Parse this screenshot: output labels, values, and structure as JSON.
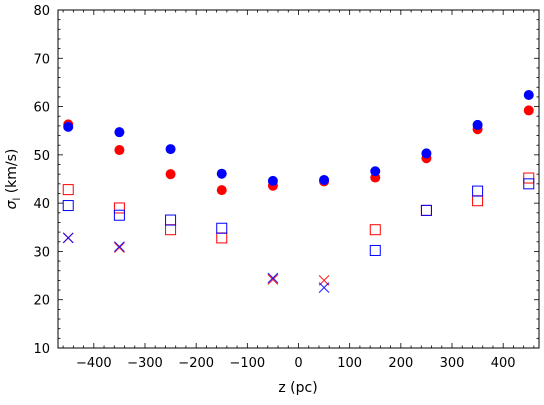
{
  "chart_data": {
    "type": "scatter",
    "title": "",
    "xlabel": "z (pc)",
    "ylabel": "σ",
    "ylabel_subscript": "l",
    "ylabel_unit": " (km/s)",
    "xlim": [
      -470,
      470
    ],
    "ylim": [
      10,
      80
    ],
    "x_ticks": [
      -400,
      -300,
      -200,
      -100,
      0,
      100,
      200,
      300,
      400
    ],
    "x_tick_labels": [
      "−400",
      "−300",
      "−200",
      "−100",
      "0",
      "100",
      "200",
      "300",
      "400"
    ],
    "y_ticks": [
      10,
      20,
      30,
      40,
      50,
      60,
      70,
      80
    ],
    "y_tick_labels": [
      "10",
      "20",
      "30",
      "40",
      "50",
      "60",
      "70",
      "80"
    ],
    "grid": false,
    "legend": "none",
    "series": [
      {
        "marker": "filled-circle",
        "color": "#ff0000",
        "x": [
          -450,
          -350,
          -250,
          -150,
          -50,
          50,
          150,
          250,
          350,
          450
        ],
        "y": [
          56.3,
          51.0,
          46.0,
          42.7,
          43.6,
          44.5,
          45.3,
          49.3,
          55.3,
          59.2
        ]
      },
      {
        "marker": "filled-circle",
        "color": "#0000ff",
        "x": [
          -450,
          -350,
          -250,
          -150,
          -50,
          50,
          150,
          250,
          350,
          450
        ],
        "y": [
          55.8,
          54.7,
          51.2,
          46.1,
          44.6,
          44.8,
          46.6,
          50.3,
          56.2,
          62.4
        ]
      },
      {
        "marker": "open-square",
        "color": "#ff0000",
        "x": [
          -450,
          -350,
          -250,
          -150,
          150,
          250,
          350,
          450
        ],
        "y": [
          42.8,
          39.0,
          34.5,
          32.8,
          34.5,
          38.5,
          40.5,
          45.2
        ]
      },
      {
        "marker": "open-square",
        "color": "#0000ff",
        "x": [
          -450,
          -350,
          -250,
          -150,
          150,
          250,
          350,
          450
        ],
        "y": [
          39.5,
          37.5,
          36.5,
          34.8,
          30.2,
          38.5,
          42.5,
          44.0
        ]
      },
      {
        "marker": "cross",
        "color": "#ff0000",
        "x": [
          -450,
          -350,
          -50,
          50
        ],
        "y": [
          32.8,
          30.8,
          24.2,
          24.0
        ]
      },
      {
        "marker": "cross",
        "color": "#0000ff",
        "x": [
          -450,
          -350,
          -50,
          50
        ],
        "y": [
          32.8,
          31.0,
          24.5,
          22.5
        ]
      }
    ]
  }
}
